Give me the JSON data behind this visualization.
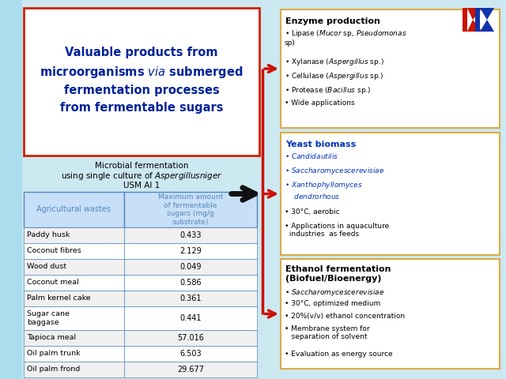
{
  "bg_color": "#cce8f0",
  "title_text": "Valuable products from\nmicroorganisms $\\it{via}$ submerged\nfermentation processes\nfrom fermentable sugars",
  "title_color": "#002299",
  "title_box_edge": "#cc2200",
  "title_box_fc": "#ffffff",
  "subtitle1": "Microbial fermentation",
  "subtitle2": "using single culture of $\\it{Aspergillus niger}$",
  "subtitle3": "USM AI 1",
  "table_col1_header": "Agricultural wastes",
  "table_col2_header": "Maximum amount\nof fermentable\nsugars (mg/g\nsubstrate)",
  "table_header_fc": "#c8dff8",
  "table_edge_color": "#5588bb",
  "table_rows_col1": [
    "Paddy husk",
    "Coconut fibres",
    "Wood dust",
    "Coconut meal",
    "Palm kernel cake",
    "Sugar cane\nbaggase",
    "Tapioca meal",
    "Oil palm trunk",
    "Oil palm frond"
  ],
  "table_rows_col2": [
    "0.433",
    "2.129",
    "0.049",
    "0.586",
    "0.361",
    "0.441",
    "57.016",
    "6.503",
    "29.677"
  ],
  "enzyme_title": "Enzyme production",
  "enzyme_fc": "#ffffff",
  "enzyme_edge": "#ddaa44",
  "enzyme_items": [
    "Lipase ($\\it{Mucor}$ sp, $\\it{Pseudomonas}$\nsp)",
    "Xylanase ($\\it{Aspergillus}$ sp.)",
    "Cellulase ($\\it{Aspergillus}$ sp.)",
    "Protease ($\\it{Bacillus}$ sp.)",
    "Wide applications"
  ],
  "yeast_title": "Yeast biomass",
  "yeast_fc": "#ffffff",
  "yeast_edge": "#ddaa44",
  "yeast_title_color": "#0033bb",
  "yeast_items": [
    "$\\it{Candida utilis}$",
    "$\\it{Saccharomyces cerevisiae}$",
    "$\\it{Xanthophyllomyces}$\n    $\\it{dendrorhous}$",
    "30°C, aerobic",
    "Applications in aquaculture\n  industries  as feeds"
  ],
  "yeast_item_colors": [
    "#0033bb",
    "#0033bb",
    "#0033bb",
    "#000000",
    "#000000"
  ],
  "ethanol_title": "Ethanol fermentation\n(Biofuel/Bioenergy)",
  "ethanol_fc": "#ffffff",
  "ethanol_edge": "#ddaa44",
  "ethanol_items": [
    "$\\it{Saccharomyces cerevisiae}$",
    "30°C, optimized medium",
    "20%(v/v) ethanol concentration",
    "Membrane system for\n   separation of solvent",
    "Evaluation as energy source"
  ],
  "red_arrow_color": "#cc1100",
  "black_arrow_color": "#111111",
  "logo_color_red": "#cc1100",
  "logo_color_blue": "#1133aa"
}
